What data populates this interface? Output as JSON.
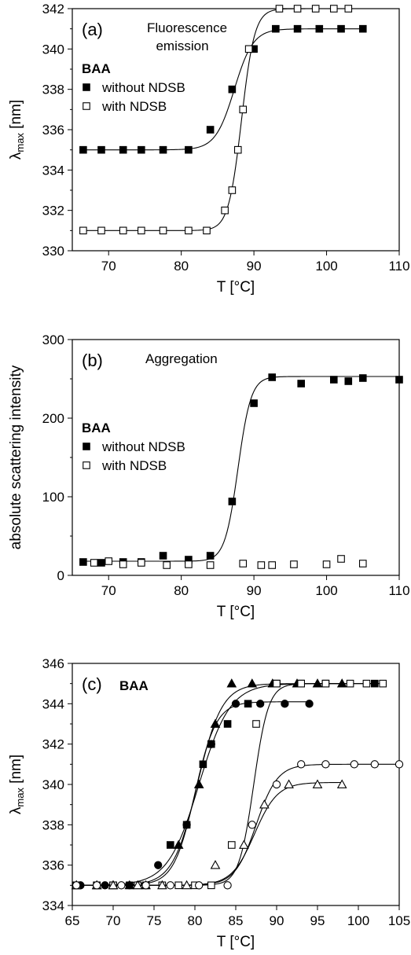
{
  "chart_data": [
    {
      "type": "scatter",
      "panel_label": "(a)",
      "title": "Fluorescence\nemission",
      "legend_title": "BAA",
      "legend_placement": "top-left",
      "xlabel": "T [°C]",
      "ylabel": "λmax [nm]",
      "xlim": [
        65,
        110
      ],
      "ylim": [
        330,
        342
      ],
      "xticks": [
        "70",
        "80",
        "90",
        "100",
        "110"
      ],
      "yticks": [
        "330",
        "332",
        "334",
        "336",
        "338",
        "340",
        "342"
      ],
      "grid": false,
      "series": [
        {
          "name": "without NDSB",
          "marker": "filled-square",
          "x": [
            66.5,
            69,
            72,
            74.5,
            77.5,
            81,
            84,
            87,
            90,
            93,
            96,
            99,
            102,
            105
          ],
          "y": [
            335,
            335,
            335,
            335,
            335,
            335,
            336,
            338,
            340,
            341,
            341,
            341,
            341,
            341
          ],
          "fit": {
            "bottom": 335,
            "top": 341,
            "mid": 87.3,
            "width": 1.3
          }
        },
        {
          "name": "with NDSB",
          "marker": "open-square",
          "x": [
            66.5,
            69,
            72,
            74.5,
            77.5,
            81,
            83.5,
            86,
            87,
            87.8,
            88.5,
            89.3,
            93.5,
            96,
            98.5,
            101,
            103
          ],
          "y": [
            331,
            331,
            331,
            331,
            331,
            331,
            331,
            332,
            333,
            335,
            337,
            340,
            342,
            342,
            342,
            342,
            342
          ],
          "fit": {
            "bottom": 331,
            "top": 342,
            "mid": 88.3,
            "width": 0.9
          }
        }
      ]
    },
    {
      "type": "scatter",
      "panel_label": "(b)",
      "title": "Aggregation",
      "legend_title": "BAA",
      "legend_placement": "left",
      "xlabel": "T [°C]",
      "ylabel": "absolute scattering intensity",
      "xlim": [
        65,
        110
      ],
      "ylim": [
        0,
        300
      ],
      "xticks": [
        "70",
        "80",
        "90",
        "100",
        "110"
      ],
      "yticks": [
        "0",
        "100",
        "200",
        "300"
      ],
      "grid": false,
      "series": [
        {
          "name": "without NDSB",
          "marker": "filled-square",
          "x": [
            66.5,
            69,
            72,
            74.5,
            77.5,
            81,
            84,
            87,
            90,
            92.5,
            96.5,
            101,
            103,
            105,
            110
          ],
          "y": [
            17,
            16,
            17,
            17,
            25,
            20,
            25,
            94,
            219,
            252,
            244,
            249,
            247,
            251,
            249
          ],
          "fit": {
            "bottom": 18,
            "top": 253,
            "mid": 87.8,
            "width": 0.9
          }
        },
        {
          "name": "with NDSB",
          "marker": "open-square",
          "x": [
            68,
            70,
            72,
            74.5,
            78,
            81,
            84,
            88.5,
            91,
            92.5,
            95.5,
            100,
            102,
            105
          ],
          "y": [
            16,
            18,
            14,
            16,
            13,
            14,
            13,
            15,
            13,
            13,
            14,
            14,
            21,
            15
          ]
        }
      ]
    },
    {
      "type": "scatter",
      "panel_label": "(c)",
      "legend_title": "BAA",
      "xlabel": "T [°C]",
      "ylabel": "λmax [nm]",
      "xlim": [
        65,
        105
      ],
      "ylim": [
        334,
        346
      ],
      "xticks": [
        "65",
        "70",
        "75",
        "80",
        "85",
        "90",
        "95",
        "100",
        "105"
      ],
      "yticks": [
        "334",
        "336",
        "338",
        "340",
        "342",
        "344",
        "346"
      ],
      "grid": false,
      "series": [
        {
          "marker": "filled-square",
          "x": [
            65.5,
            68,
            70,
            72,
            74,
            77,
            79,
            81,
            82,
            84,
            86.5,
            90,
            93,
            96,
            102
          ],
          "y": [
            335,
            335,
            335,
            335,
            335,
            337,
            338,
            341,
            342,
            343,
            344,
            345,
            345,
            345,
            345
          ],
          "fit": {
            "bottom": 335,
            "top": 345,
            "mid": 80.5,
            "width": 1.9
          }
        },
        {
          "marker": "filled-triangle",
          "x": [
            65.5,
            68,
            70,
            72,
            74,
            78,
            80.5,
            82.5,
            84.5,
            87,
            89.5,
            92.5,
            95,
            98
          ],
          "y": [
            335,
            335,
            335,
            335,
            335,
            337,
            340,
            343,
            345,
            345,
            345,
            345,
            345,
            345
          ],
          "fit": {
            "bottom": 335,
            "top": 345,
            "mid": 80.3,
            "width": 1.5
          }
        },
        {
          "marker": "filled-circle",
          "x": [
            66,
            69,
            72,
            75.5,
            79,
            82,
            85,
            88,
            91,
            94
          ],
          "y": [
            335,
            335,
            335,
            336,
            338,
            342,
            344,
            344,
            344,
            344
          ],
          "fit": {
            "bottom": 335,
            "top": 344.1,
            "mid": 80.0,
            "width": 1.3
          }
        },
        {
          "marker": "open-square",
          "x": [
            65.5,
            68,
            70,
            73,
            76,
            78,
            80,
            82,
            84.5,
            87.5,
            90,
            93,
            96,
            99,
            101,
            103
          ],
          "y": [
            335,
            335,
            335,
            335,
            335,
            335,
            335,
            335,
            337,
            343,
            345,
            345,
            345,
            345,
            345,
            345
          ],
          "fit": {
            "bottom": 335,
            "top": 345,
            "mid": 87.2,
            "width": 0.9
          }
        },
        {
          "marker": "open-triangle",
          "x": [
            65.5,
            68,
            70,
            73,
            76,
            79,
            82.5,
            86,
            88.5,
            91.5,
            95,
            98
          ],
          "y": [
            335,
            335,
            335,
            335,
            335,
            335,
            336,
            337,
            339,
            340,
            340,
            340
          ],
          "fit": {
            "bottom": 335,
            "top": 340.1,
            "mid": 87.3,
            "width": 1.4
          }
        },
        {
          "marker": "open-circle",
          "x": [
            65.5,
            68,
            71,
            74,
            77,
            80.5,
            84,
            87,
            90,
            93,
            96,
            99.5,
            102,
            105
          ],
          "y": [
            335,
            335,
            335,
            335,
            335,
            335,
            335,
            338,
            340,
            341,
            341,
            341,
            341,
            341
          ],
          "fit": {
            "bottom": 335,
            "top": 341,
            "mid": 87.5,
            "width": 1.3
          }
        }
      ]
    }
  ]
}
